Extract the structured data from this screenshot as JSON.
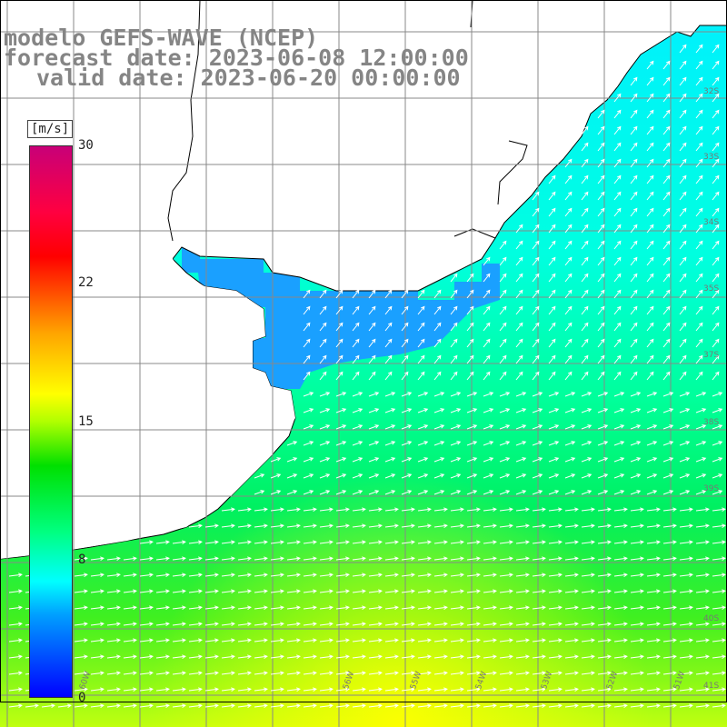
{
  "title": {
    "line1": "modelo GEFS-WAVE (NCEP)",
    "line2": "forecast date: 2023-06-08 12:00:00",
    "line3": "valid date: 2023-06-20 00:00:00"
  },
  "colorbar": {
    "unit": "[m/s]",
    "min": 0,
    "max": 30,
    "ticks": [
      "30",
      "22",
      "15",
      "8",
      "0"
    ],
    "tick_values": [
      30,
      22,
      15,
      8,
      0
    ],
    "colors": [
      "#0000ff",
      "#00a0ff",
      "#00ffff",
      "#00ff80",
      "#00e000",
      "#b0ff00",
      "#ffff00",
      "#ffa500",
      "#ff0000",
      "#c80078"
    ]
  },
  "map": {
    "lat_labels": [
      "32S",
      "33S",
      "34S",
      "35S",
      "37S",
      "38S",
      "39S",
      "40S",
      "41S"
    ],
    "lon_labels": [
      "60W",
      "56W",
      "55W",
      "54W",
      "53W",
      "52W",
      "51W"
    ],
    "land_color": "#ffffff",
    "grid_color": "#888888",
    "arrow_color": "#ffffff"
  }
}
